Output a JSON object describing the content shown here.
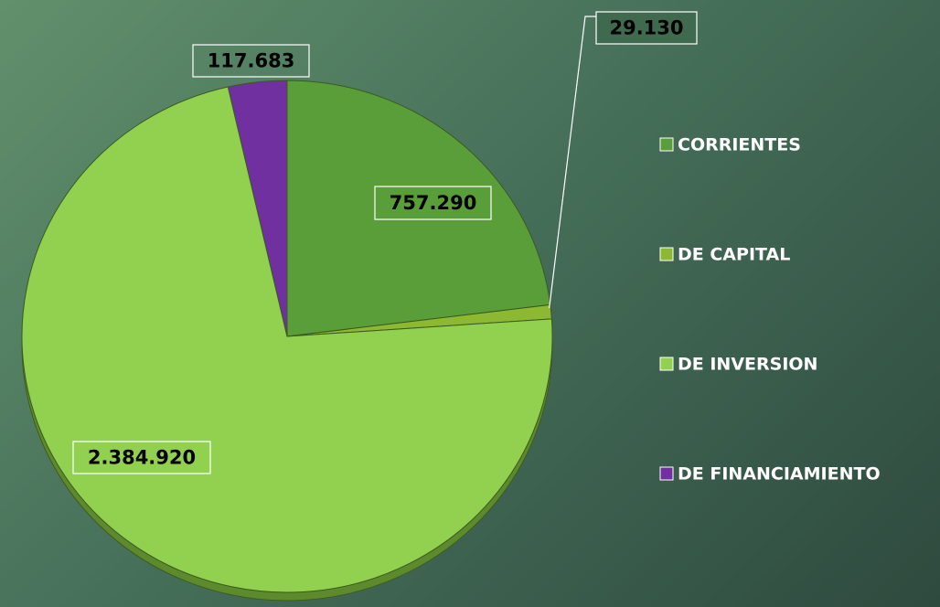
{
  "chart_data": {
    "type": "pie",
    "categories": [
      "CORRIENTES",
      "DE CAPITAL",
      "DE INVERSION",
      "DE FINANCIAMIENTO"
    ],
    "values": [
      757290,
      29130,
      2384920,
      117683
    ],
    "value_labels": [
      "757.290",
      "29.130",
      "2.384.920",
      "117.683"
    ],
    "colors": [
      "#5a9e3a",
      "#8db832",
      "#92d050",
      "#7030a0"
    ],
    "legend": "right"
  }
}
